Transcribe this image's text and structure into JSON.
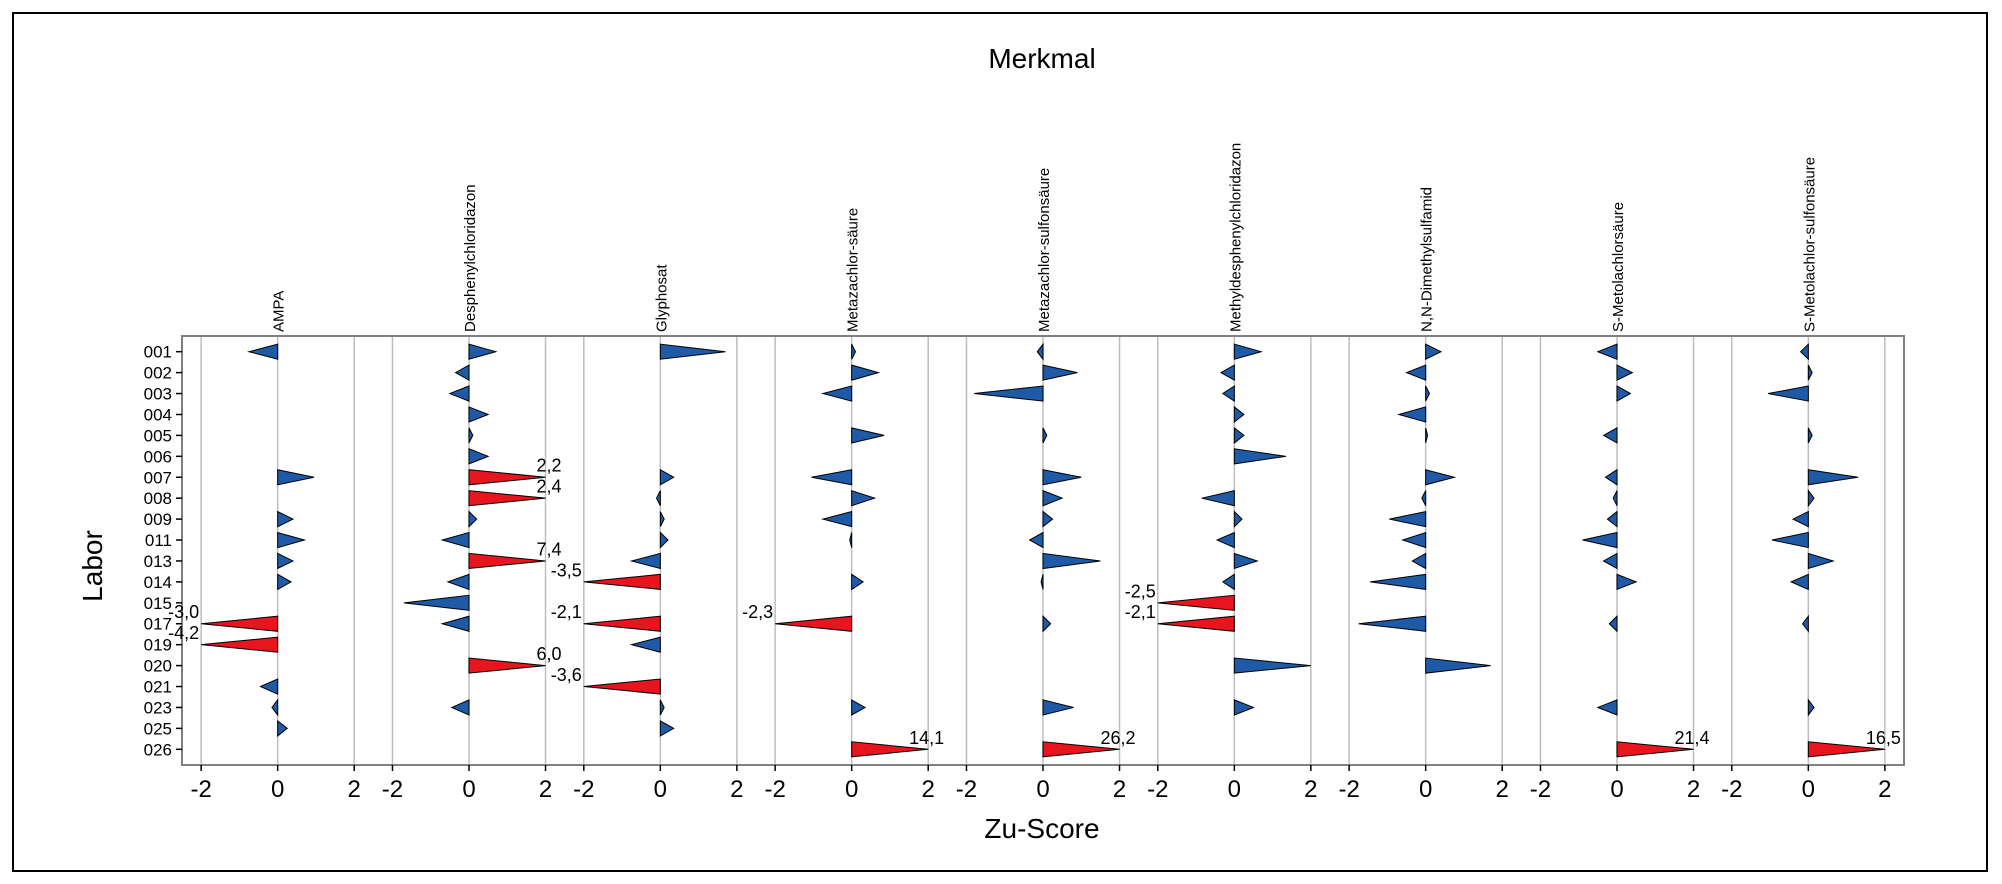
{
  "chart_data": {
    "type": "bar",
    "title": "Merkmal",
    "xlabel": "Zu-Score",
    "ylabel": "Labor",
    "x_ticks": [
      -2,
      0,
      2
    ],
    "xlim_per_panel": [
      -2.5,
      2.5
    ],
    "categories": [
      "001",
      "002",
      "003",
      "004",
      "005",
      "006",
      "007",
      "008",
      "009",
      "011",
      "013",
      "014",
      "015",
      "017",
      "019",
      "020",
      "021",
      "023",
      "025",
      "026"
    ],
    "series": [
      {
        "name": "AMPA",
        "values": [
          -0.75,
          null,
          null,
          null,
          null,
          null,
          0.95,
          null,
          0.4,
          0.7,
          0.4,
          0.35,
          null,
          -3.0,
          -4.2,
          null,
          -0.45,
          -0.15,
          0.25,
          null
        ],
        "labels": {
          "017": "-3,0",
          "019": "-4,2"
        }
      },
      {
        "name": "Desphenylchloridazon",
        "values": [
          0.7,
          -0.35,
          -0.5,
          0.5,
          0.1,
          0.5,
          2.2,
          2.4,
          0.2,
          -0.7,
          7.4,
          -0.55,
          -1.7,
          -0.7,
          null,
          6.0,
          null,
          -0.45,
          null,
          null
        ],
        "labels": {
          "007": "2,2",
          "008": "2,4",
          "013": "7,4",
          "020": "6,0"
        }
      },
      {
        "name": "Glyphosat",
        "values": [
          1.7,
          null,
          null,
          null,
          null,
          null,
          0.35,
          -0.1,
          0.1,
          0.2,
          -0.75,
          -3.5,
          null,
          -2.1,
          -0.75,
          null,
          -3.6,
          0.1,
          0.35,
          null
        ],
        "labels": {
          "014": "-3,5",
          "017": "-2,1",
          "021": "-3,6"
        }
      },
      {
        "name": "Metazachlor-säure",
        "values": [
          0.1,
          0.7,
          -0.75,
          null,
          0.85,
          null,
          -1.05,
          0.6,
          -0.75,
          -0.05,
          null,
          0.3,
          null,
          -2.3,
          null,
          null,
          null,
          0.35,
          null,
          14.1
        ],
        "labels": {
          "017": "-2,3",
          "026": "14,1"
        }
      },
      {
        "name": "Metazachlor-sulfonsäure",
        "values": [
          -0.15,
          0.9,
          -1.8,
          null,
          0.1,
          null,
          1.0,
          0.5,
          0.25,
          -0.35,
          1.5,
          -0.05,
          null,
          0.2,
          null,
          null,
          null,
          0.8,
          null,
          26.2
        ],
        "labels": {
          "026": "26,2"
        }
      },
      {
        "name": "Methyldesphenylchloridazon",
        "values": [
          0.7,
          -0.35,
          -0.3,
          0.25,
          0.25,
          1.35,
          null,
          -0.85,
          0.2,
          -0.45,
          0.6,
          -0.3,
          -2.5,
          -2.1,
          null,
          2.0,
          null,
          0.5,
          null,
          null
        ],
        "labels": {
          "015": "-2,5",
          "017": "-2,1"
        }
      },
      {
        "name": "N,N-Dimethylsulfamid",
        "values": [
          0.4,
          -0.5,
          0.1,
          -0.7,
          0.05,
          null,
          0.75,
          -0.1,
          -0.95,
          -0.6,
          -0.35,
          -1.45,
          null,
          -1.75,
          null,
          1.7,
          null,
          null,
          null,
          null
        ],
        "labels": {}
      },
      {
        "name": "S-Metolachlorsäure",
        "values": [
          -0.5,
          0.4,
          0.35,
          null,
          -0.35,
          null,
          -0.3,
          -0.1,
          -0.25,
          -0.9,
          -0.35,
          0.5,
          null,
          -0.2,
          null,
          null,
          null,
          -0.5,
          null,
          21.4
        ],
        "labels": {
          "026": "21,4"
        }
      },
      {
        "name": "S-Metolachlor-sulfonsäure",
        "values": [
          -0.2,
          0.1,
          -1.05,
          null,
          0.1,
          null,
          1.3,
          0.15,
          -0.4,
          -0.95,
          0.65,
          -0.45,
          null,
          -0.15,
          null,
          null,
          null,
          0.15,
          null,
          16.5
        ],
        "labels": {
          "026": "16,5"
        }
      }
    ],
    "colors": {
      "in_range": "#1f5aa6",
      "out_of_range": "#e8141e",
      "gridline": "#bdbdbd",
      "frame": "#808080"
    },
    "grid": true,
    "legend": "none"
  }
}
